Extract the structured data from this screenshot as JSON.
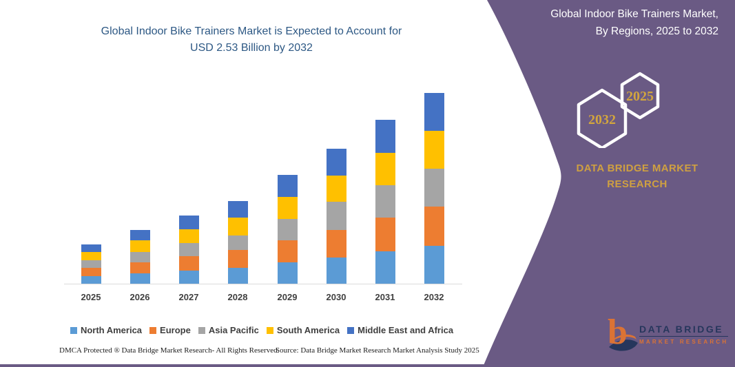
{
  "chart": {
    "title_line1": "Global Indoor Bike Trainers Market is Expected to Account for",
    "title_line2": "USD 2.53 Billion by 2032",
    "title_color": "#2D5884"
  },
  "chart_data": {
    "type": "bar",
    "stacked": true,
    "title": "Global Indoor Bike Trainers Market is Expected to Account for USD 2.53 Billion by 2032",
    "unit": "USD Billion",
    "categories": [
      "2025",
      "2026",
      "2027",
      "2028",
      "2029",
      "2030",
      "2031",
      "2032"
    ],
    "series": [
      {
        "name": "North America",
        "color": "#5B9BD5",
        "values": [
          0.11,
          0.15,
          0.18,
          0.22,
          0.29,
          0.36,
          0.44,
          0.51
        ]
      },
      {
        "name": "Europe",
        "color": "#ED7D31",
        "values": [
          0.11,
          0.14,
          0.19,
          0.24,
          0.29,
          0.36,
          0.44,
          0.52
        ]
      },
      {
        "name": "Asia Pacific",
        "color": "#A5A5A5",
        "values": [
          0.1,
          0.14,
          0.18,
          0.19,
          0.29,
          0.37,
          0.43,
          0.5
        ]
      },
      {
        "name": "South America",
        "color": "#FFC000",
        "values": [
          0.11,
          0.15,
          0.18,
          0.23,
          0.29,
          0.35,
          0.43,
          0.5
        ]
      },
      {
        "name": "Middle East and Africa",
        "color": "#4472C4",
        "values": [
          0.1,
          0.14,
          0.18,
          0.22,
          0.29,
          0.36,
          0.44,
          0.5
        ]
      }
    ],
    "totals": [
      0.53,
      0.72,
      0.91,
      1.1,
      1.45,
      1.8,
      2.18,
      2.53
    ],
    "y_axis_visible": false,
    "gridlines": false,
    "legend_position": "bottom"
  },
  "side_panel": {
    "heading_line1": "Global Indoor Bike Trainers Market,",
    "heading_line2": "By Regions, 2025 to 2032",
    "hexagon_left_year": "2032",
    "hexagon_right_year": "2025",
    "brand_line1": "DATA BRIDGE MARKET",
    "brand_line2": "RESEARCH",
    "bg_color": "#6A5A84",
    "accent_color": "#D2A53E"
  },
  "logo": {
    "mark": "b",
    "line1": "DATA BRIDGE",
    "line2": "MARKET RESEARCH"
  },
  "footer": {
    "left": "DMCA Protected ® Data Bridge Market Research-  All Rights Reserved.",
    "right": "Source: Data Bridge Market Research  Market Analysis Study 2025"
  }
}
